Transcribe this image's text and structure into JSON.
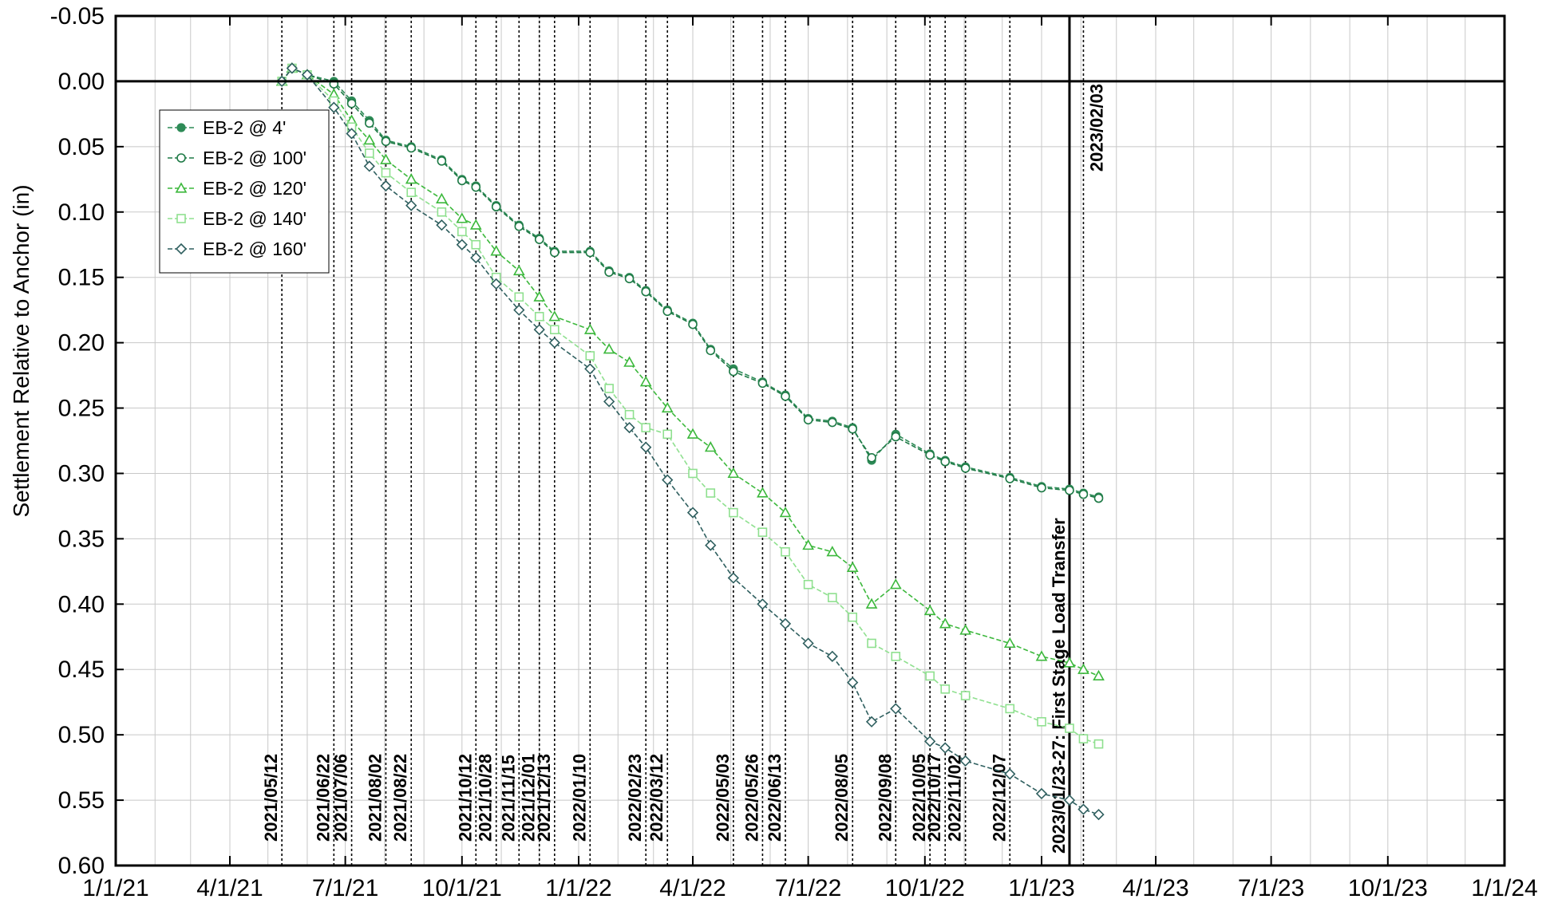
{
  "chart_data": {
    "type": "line",
    "title": "",
    "xlabel": "",
    "ylabel": "Settlement Relative to Anchor (in)",
    "xlim": [
      "2021-01-01",
      "2024-01-01"
    ],
    "ylim": [
      -0.05,
      0.6
    ],
    "y_inverted": true,
    "grid": true,
    "legend_position": "top-left",
    "x_tick_labels": [
      "1/1/21",
      "4/1/21",
      "7/1/21",
      "10/1/21",
      "1/1/22",
      "4/1/22",
      "7/1/22",
      "10/1/22",
      "1/1/23",
      "4/1/23",
      "7/1/23",
      "10/1/23",
      "1/1/24"
    ],
    "x_tick_dates": [
      "2021-01-01",
      "2021-04-01",
      "2021-07-01",
      "2021-10-01",
      "2022-01-01",
      "2022-04-01",
      "2022-07-01",
      "2022-10-01",
      "2023-01-01",
      "2023-04-01",
      "2023-07-01",
      "2023-10-01",
      "2024-01-01"
    ],
    "y_ticks": [
      -0.05,
      0.0,
      0.05,
      0.1,
      0.15,
      0.2,
      0.25,
      0.3,
      0.35,
      0.4,
      0.45,
      0.5,
      0.55,
      0.6
    ],
    "y_tick_labels": [
      "-0.05",
      "0.00",
      "0.05",
      "0.10",
      "0.15",
      "0.20",
      "0.25",
      "0.30",
      "0.35",
      "0.40",
      "0.45",
      "0.50",
      "0.55",
      "0.60"
    ],
    "event_lines": [
      {
        "date": "2021-05-12",
        "label": "2021/05/12"
      },
      {
        "date": "2021-06-22",
        "label": "2021/06/22"
      },
      {
        "date": "2021-07-06",
        "label": "2021/07/06"
      },
      {
        "date": "2021-08-02",
        "label": "2021/08/02"
      },
      {
        "date": "2021-08-22",
        "label": "2021/08/22"
      },
      {
        "date": "2021-10-12",
        "label": "2021/10/12"
      },
      {
        "date": "2021-10-28",
        "label": "2021/10/28"
      },
      {
        "date": "2021-11-15",
        "label": "2021/11/15"
      },
      {
        "date": "2021-12-01",
        "label": "2021/12/01"
      },
      {
        "date": "2021-12-13",
        "label": "2021/12/13"
      },
      {
        "date": "2022-01-10",
        "label": "2022/01/10"
      },
      {
        "date": "2022-02-23",
        "label": "2022/02/23"
      },
      {
        "date": "2022-03-12",
        "label": "2022/03/12"
      },
      {
        "date": "2022-05-03",
        "label": "2022/05/03"
      },
      {
        "date": "2022-05-26",
        "label": "2022/05/26"
      },
      {
        "date": "2022-06-13",
        "label": "2022/06/13"
      },
      {
        "date": "2022-08-05",
        "label": "2022/08/05"
      },
      {
        "date": "2022-09-08",
        "label": "2022/09/08"
      },
      {
        "date": "2022-10-05",
        "label": "2022/10/05"
      },
      {
        "date": "2022-10-17",
        "label": "2022/10/17"
      },
      {
        "date": "2022-11-02",
        "label": "2022/11/02"
      },
      {
        "date": "2022-12-07",
        "label": "2022/12/07"
      },
      {
        "date": "2023-02-03",
        "label": "2023/02/03"
      },
      {
        "date": "2023-01-23",
        "label": "2023/01/23-27: First Stage Load Transfer",
        "style": "solid"
      }
    ],
    "series": [
      {
        "name": "EB-2 @ 4'",
        "color": "#2e8b57",
        "marker": "circle-filled",
        "x": [
          "2021-05-12",
          "2021-05-20",
          "2021-06-01",
          "2021-06-22",
          "2021-07-06",
          "2021-07-20",
          "2021-08-02",
          "2021-08-22",
          "2021-09-15",
          "2021-10-01",
          "2021-10-12",
          "2021-10-28",
          "2021-11-15",
          "2021-12-01",
          "2021-12-13",
          "2022-01-10",
          "2022-01-25",
          "2022-02-10",
          "2022-02-23",
          "2022-03-12",
          "2022-04-01",
          "2022-04-15",
          "2022-05-03",
          "2022-05-26",
          "2022-06-13",
          "2022-07-01",
          "2022-07-20",
          "2022-08-05",
          "2022-08-20",
          "2022-09-08",
          "2022-10-05",
          "2022-10-17",
          "2022-11-02",
          "2022-12-07",
          "2023-01-01",
          "2023-01-23",
          "2023-02-03",
          "2023-02-15"
        ],
        "values": [
          0.0,
          -0.01,
          -0.005,
          0.0,
          0.015,
          0.03,
          0.045,
          0.05,
          0.06,
          0.075,
          0.08,
          0.095,
          0.11,
          0.12,
          0.13,
          0.13,
          0.145,
          0.15,
          0.16,
          0.175,
          0.185,
          0.205,
          0.22,
          0.23,
          0.24,
          0.258,
          0.26,
          0.265,
          0.29,
          0.27,
          0.285,
          0.29,
          0.295,
          0.303,
          0.31,
          0.312,
          0.315,
          0.318
        ]
      },
      {
        "name": "EB-2 @ 100'",
        "color": "#1e7a46",
        "marker": "circle-open",
        "x": [
          "2021-05-12",
          "2021-05-20",
          "2021-06-01",
          "2021-06-22",
          "2021-07-06",
          "2021-07-20",
          "2021-08-02",
          "2021-08-22",
          "2021-09-15",
          "2021-10-01",
          "2021-10-12",
          "2021-10-28",
          "2021-11-15",
          "2021-12-01",
          "2021-12-13",
          "2022-01-10",
          "2022-01-25",
          "2022-02-10",
          "2022-02-23",
          "2022-03-12",
          "2022-04-01",
          "2022-04-15",
          "2022-05-03",
          "2022-05-26",
          "2022-06-13",
          "2022-07-01",
          "2022-07-20",
          "2022-08-05",
          "2022-08-20",
          "2022-09-08",
          "2022-10-05",
          "2022-10-17",
          "2022-11-02",
          "2022-12-07",
          "2023-01-01",
          "2023-01-23",
          "2023-02-03",
          "2023-02-15"
        ],
        "values": [
          0.0,
          -0.01,
          -0.005,
          0.002,
          0.017,
          0.032,
          0.046,
          0.051,
          0.061,
          0.076,
          0.081,
          0.096,
          0.111,
          0.121,
          0.131,
          0.131,
          0.146,
          0.151,
          0.161,
          0.176,
          0.186,
          0.206,
          0.222,
          0.231,
          0.241,
          0.259,
          0.261,
          0.266,
          0.288,
          0.272,
          0.286,
          0.291,
          0.296,
          0.304,
          0.311,
          0.313,
          0.316,
          0.319
        ]
      },
      {
        "name": "EB-2 @ 120'",
        "color": "#3cb83c",
        "marker": "triangle-open",
        "x": [
          "2021-05-12",
          "2021-05-20",
          "2021-06-01",
          "2021-06-22",
          "2021-07-06",
          "2021-07-20",
          "2021-08-02",
          "2021-08-22",
          "2021-09-15",
          "2021-10-01",
          "2021-10-12",
          "2021-10-28",
          "2021-11-15",
          "2021-12-01",
          "2021-12-13",
          "2022-01-10",
          "2022-01-25",
          "2022-02-10",
          "2022-02-23",
          "2022-03-12",
          "2022-04-01",
          "2022-04-15",
          "2022-05-03",
          "2022-05-26",
          "2022-06-13",
          "2022-07-01",
          "2022-07-20",
          "2022-08-05",
          "2022-08-20",
          "2022-09-08",
          "2022-10-05",
          "2022-10-17",
          "2022-11-02",
          "2022-12-07",
          "2023-01-01",
          "2023-01-23",
          "2023-02-03",
          "2023-02-15"
        ],
        "values": [
          0.0,
          -0.01,
          -0.005,
          0.01,
          0.03,
          0.045,
          0.06,
          0.075,
          0.09,
          0.105,
          0.11,
          0.13,
          0.145,
          0.165,
          0.18,
          0.19,
          0.205,
          0.215,
          0.23,
          0.25,
          0.27,
          0.28,
          0.3,
          0.315,
          0.33,
          0.355,
          0.36,
          0.372,
          0.4,
          0.385,
          0.405,
          0.415,
          0.42,
          0.43,
          0.44,
          0.445,
          0.45,
          0.455
        ]
      },
      {
        "name": "EB-2 @ 140'",
        "color": "#8fe08f",
        "marker": "square-open",
        "x": [
          "2021-05-12",
          "2021-05-20",
          "2021-06-01",
          "2021-06-22",
          "2021-07-06",
          "2021-07-20",
          "2021-08-02",
          "2021-08-22",
          "2021-09-15",
          "2021-10-01",
          "2021-10-12",
          "2021-10-28",
          "2021-11-15",
          "2021-12-01",
          "2021-12-13",
          "2022-01-10",
          "2022-01-25",
          "2022-02-10",
          "2022-02-23",
          "2022-03-12",
          "2022-04-01",
          "2022-04-15",
          "2022-05-03",
          "2022-05-26",
          "2022-06-13",
          "2022-07-01",
          "2022-07-20",
          "2022-08-05",
          "2022-08-20",
          "2022-09-08",
          "2022-10-05",
          "2022-10-17",
          "2022-11-02",
          "2022-12-07",
          "2023-01-01",
          "2023-01-23",
          "2023-02-03",
          "2023-02-15"
        ],
        "values": [
          0.0,
          -0.01,
          -0.005,
          0.015,
          0.035,
          0.055,
          0.07,
          0.085,
          0.1,
          0.115,
          0.125,
          0.15,
          0.165,
          0.18,
          0.19,
          0.21,
          0.235,
          0.255,
          0.265,
          0.27,
          0.3,
          0.315,
          0.33,
          0.345,
          0.36,
          0.385,
          0.395,
          0.41,
          0.43,
          0.44,
          0.455,
          0.465,
          0.47,
          0.48,
          0.49,
          0.495,
          0.503,
          0.507
        ]
      },
      {
        "name": "EB-2 @ 160'",
        "color": "#2f5f5f",
        "marker": "diamond-open",
        "x": [
          "2021-05-12",
          "2021-05-20",
          "2021-06-01",
          "2021-06-22",
          "2021-07-06",
          "2021-07-20",
          "2021-08-02",
          "2021-08-22",
          "2021-09-15",
          "2021-10-01",
          "2021-10-12",
          "2021-10-28",
          "2021-11-15",
          "2021-12-01",
          "2021-12-13",
          "2022-01-10",
          "2022-01-25",
          "2022-02-10",
          "2022-02-23",
          "2022-03-12",
          "2022-04-01",
          "2022-04-15",
          "2022-05-03",
          "2022-05-26",
          "2022-06-13",
          "2022-07-01",
          "2022-07-20",
          "2022-08-05",
          "2022-08-20",
          "2022-09-08",
          "2022-10-05",
          "2022-10-17",
          "2022-11-02",
          "2022-12-07",
          "2023-01-01",
          "2023-01-23",
          "2023-02-03",
          "2023-02-15"
        ],
        "values": [
          0.0,
          -0.01,
          -0.005,
          0.02,
          0.04,
          0.065,
          0.08,
          0.095,
          0.11,
          0.125,
          0.135,
          0.155,
          0.175,
          0.19,
          0.2,
          0.22,
          0.245,
          0.265,
          0.28,
          0.305,
          0.33,
          0.355,
          0.38,
          0.4,
          0.415,
          0.43,
          0.44,
          0.46,
          0.49,
          0.48,
          0.505,
          0.51,
          0.52,
          0.53,
          0.545,
          0.55,
          0.557,
          0.561
        ]
      }
    ]
  }
}
